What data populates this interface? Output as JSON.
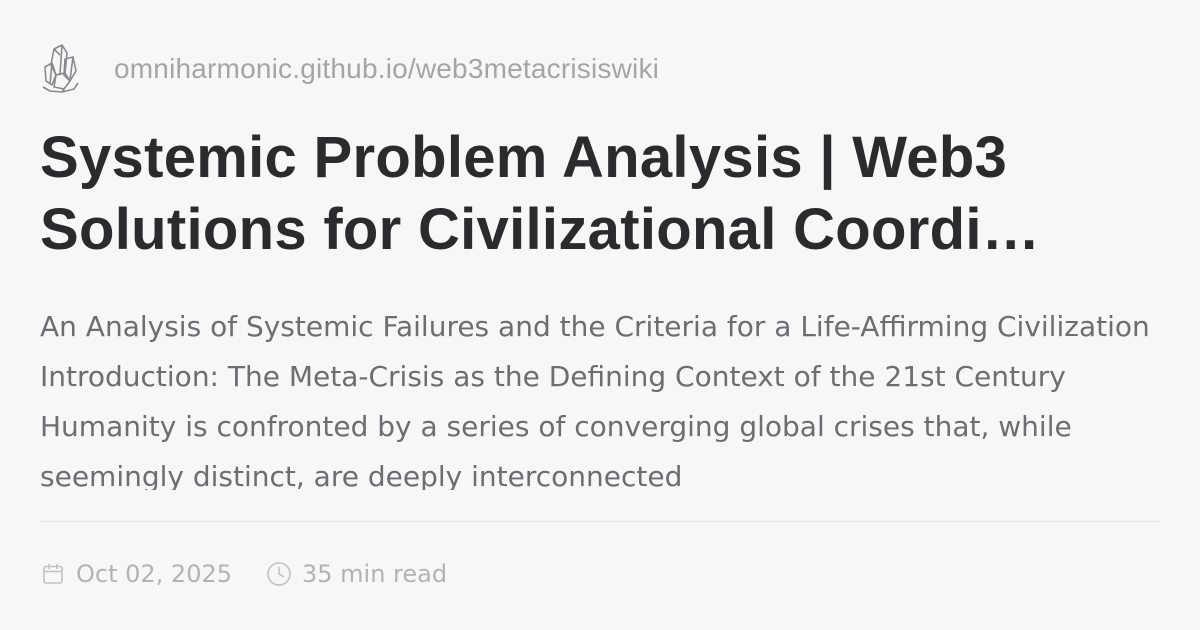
{
  "site": {
    "logo_icon": "crystal-cluster-icon",
    "url": "omniharmonic.github.io/web3metacrisiswiki"
  },
  "article": {
    "title": "Systemic Problem Analysis | Web3 Solutions for Civilizational Coordi…",
    "description": "An Analysis of Systemic Failures and the Criteria for a Life-Affirming Civilization Introduction: The Meta-Crisis as the Defining Context of the 21st Century Humanity is confronted by a series of converging global crises that, while seemingly distinct, are deeply interconnected"
  },
  "meta": {
    "date_icon": "calendar-icon",
    "date": "Oct 02, 2025",
    "read_time_icon": "clock-icon",
    "read_time": "35 min read"
  },
  "colors": {
    "background": "#f7f7f8",
    "title": "#2b2b2e",
    "description": "#6e6e72",
    "muted": "#b3b3b6",
    "divider": "#e4e4e7"
  }
}
